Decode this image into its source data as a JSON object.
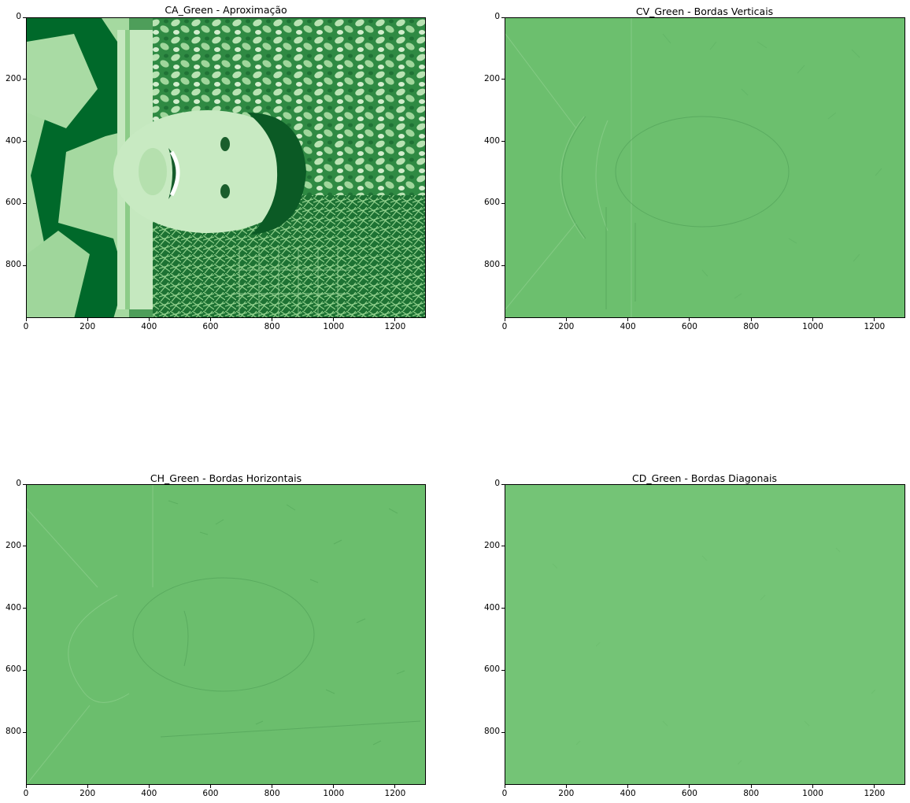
{
  "chart_data": [
    {
      "type": "image",
      "title": "CA_Green - Aproximação",
      "content": "Green-channel approximation coefficients of a photo of a smiling man (rotated), foliage background",
      "colormap": "Greens",
      "xlim": [
        0,
        1300
      ],
      "ylim": [
        970,
        0
      ],
      "xticks": [
        0,
        200,
        400,
        600,
        800,
        1000,
        1200
      ],
      "yticks": [
        0,
        200,
        400,
        600,
        800
      ],
      "grid": false
    },
    {
      "type": "image",
      "title": "CV_Green - Bordas Verticais",
      "content": "Vertical detail coefficients (edge map), near-uniform mid green",
      "colormap": "Greens",
      "xlim": [
        0,
        1300
      ],
      "ylim": [
        970,
        0
      ],
      "xticks": [
        0,
        200,
        400,
        600,
        800,
        1000,
        1200
      ],
      "yticks": [
        0,
        200,
        400,
        600,
        800
      ],
      "grid": false
    },
    {
      "type": "image",
      "title": "CH_Green - Bordas Horizontais",
      "content": "Horizontal detail coefficients (edge map), near-uniform mid green",
      "colormap": "Greens",
      "xlim": [
        0,
        1300
      ],
      "ylim": [
        970,
        0
      ],
      "xticks": [
        0,
        200,
        400,
        600,
        800,
        1000,
        1200
      ],
      "yticks": [
        0,
        200,
        400,
        600,
        800
      ],
      "grid": false
    },
    {
      "type": "image",
      "title": "CD_Green - Bordas Diagonais",
      "content": "Diagonal detail coefficients (edge map), almost flat light green",
      "colormap": "Greens",
      "xlim": [
        0,
        1300
      ],
      "ylim": [
        970,
        0
      ],
      "xticks": [
        0,
        200,
        400,
        600,
        800,
        1000,
        1200
      ],
      "yticks": [
        0,
        200,
        400,
        600,
        800
      ],
      "grid": false
    }
  ],
  "colors": {
    "dark_green": "#00692a",
    "mid_green": "#6cbf6e",
    "flat_green": "#74c476",
    "light_green": "#b7e1b1"
  }
}
